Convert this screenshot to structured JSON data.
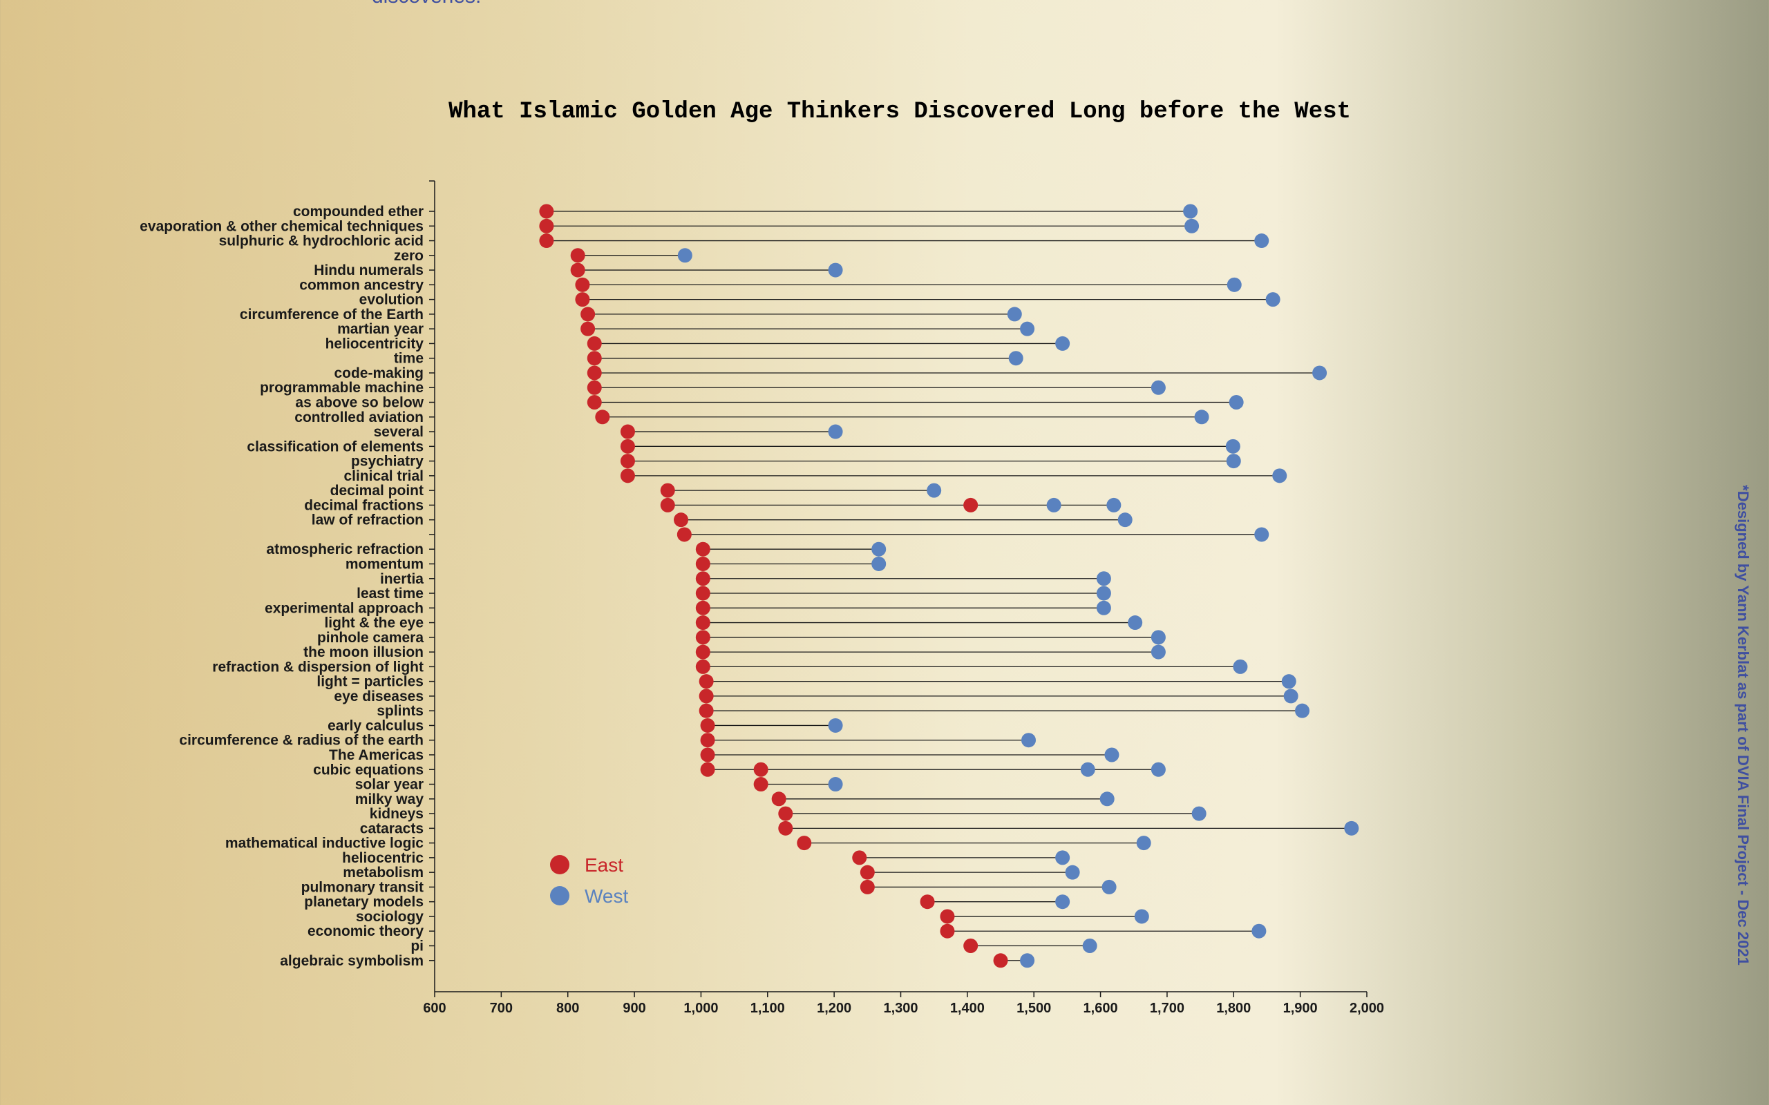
{
  "page": {
    "top_fragment": "discoveries.",
    "credit": "*Designed by Yann Kerblat as part of DVIA Final Project - Dec 2021"
  },
  "colors": {
    "east": "#c8262a",
    "west": "#5a82bf",
    "line": "#1a1a1a",
    "credit": "#3f4fa0"
  },
  "chart_data": {
    "type": "dumbbell",
    "title": "What Islamic Golden Age Thinkers Discovered Long before the West",
    "xlabel": "",
    "ylabel": "",
    "xlim": [
      600,
      2000
    ],
    "x_ticks": [
      "600",
      "700",
      "800",
      "900",
      "1,000",
      "1,100",
      "1,200",
      "1,300",
      "1,400",
      "1,500",
      "1,600",
      "1,700",
      "1,800",
      "1,900",
      "2,000"
    ],
    "grid": false,
    "legend": {
      "position": "bottom-left",
      "east_label": "East",
      "west_label": "West"
    },
    "rows": [
      {
        "label": "compounded ether",
        "east": [
          768
        ],
        "west": [
          1735
        ]
      },
      {
        "label": "evaporation & other chemical techniques",
        "east": [
          768
        ],
        "west": [
          1737
        ]
      },
      {
        "label": "sulphuric & hydrochloric acid",
        "east": [
          768
        ],
        "west": [
          1842
        ]
      },
      {
        "label": "zero",
        "east": [
          815
        ],
        "west": [
          976
        ]
      },
      {
        "label": "Hindu numerals",
        "east": [
          815
        ],
        "west": [
          1202
        ]
      },
      {
        "label": "common ancestry",
        "east": [
          822
        ],
        "west": [
          1801
        ]
      },
      {
        "label": "evolution",
        "east": [
          822
        ],
        "west": [
          1859
        ]
      },
      {
        "label": "circumference of the Earth",
        "east": [
          830
        ],
        "west": [
          1471
        ]
      },
      {
        "label": "martian year",
        "east": [
          830
        ],
        "west": [
          1490
        ]
      },
      {
        "label": "heliocentricity",
        "east": [
          840
        ],
        "west": [
          1543
        ]
      },
      {
        "label": "time",
        "east": [
          840
        ],
        "west": [
          1473
        ]
      },
      {
        "label": "code-making",
        "east": [
          840
        ],
        "west": [
          1929
        ]
      },
      {
        "label": "programmable machine",
        "east": [
          840
        ],
        "west": [
          1687
        ]
      },
      {
        "label": "as above so below",
        "east": [
          840
        ],
        "west": [
          1804
        ]
      },
      {
        "label": "controlled aviation",
        "east": [
          852
        ],
        "west": [
          1752
        ]
      },
      {
        "label": "several",
        "east": [
          890
        ],
        "west": [
          1202
        ]
      },
      {
        "label": "classification of elements",
        "east": [
          890
        ],
        "west": [
          1799
        ]
      },
      {
        "label": "psychiatry",
        "east": [
          890
        ],
        "west": [
          1800
        ]
      },
      {
        "label": "clinical trial",
        "east": [
          890
        ],
        "west": [
          1869
        ]
      },
      {
        "label": "decimal point",
        "east": [
          950
        ],
        "west": [
          1350
        ]
      },
      {
        "label": "decimal fractions",
        "east": [
          950,
          1405
        ],
        "west": [
          1530,
          1620
        ]
      },
      {
        "label": "law of refraction",
        "east": [
          970
        ],
        "west": [
          1637
        ]
      },
      {
        "label": "",
        "east": [
          975
        ],
        "west": [
          1842
        ]
      },
      {
        "label": "atmospheric refraction",
        "east": [
          1003
        ],
        "west": [
          1267
        ]
      },
      {
        "label": "momentum",
        "east": [
          1003
        ],
        "west": [
          1267
        ]
      },
      {
        "label": "inertia",
        "east": [
          1003
        ],
        "west": [
          1605
        ]
      },
      {
        "label": "least time",
        "east": [
          1003
        ],
        "west": [
          1605
        ]
      },
      {
        "label": "experimental approach",
        "east": [
          1003
        ],
        "west": [
          1605
        ]
      },
      {
        "label": "light & the eye",
        "east": [
          1003
        ],
        "west": [
          1652
        ]
      },
      {
        "label": "pinhole camera",
        "east": [
          1003
        ],
        "west": [
          1687
        ]
      },
      {
        "label": "the moon illusion",
        "east": [
          1003
        ],
        "west": [
          1687
        ]
      },
      {
        "label": "refraction & dispersion of light",
        "east": [
          1003
        ],
        "west": [
          1810
        ]
      },
      {
        "label": "light = particles",
        "east": [
          1008
        ],
        "west": [
          1883
        ]
      },
      {
        "label": "eye diseases",
        "east": [
          1008
        ],
        "west": [
          1886
        ]
      },
      {
        "label": "splints",
        "east": [
          1008
        ],
        "west": [
          1903
        ]
      },
      {
        "label": "early calculus",
        "east": [
          1010
        ],
        "west": [
          1202
        ]
      },
      {
        "label": "circumference & radius of the earth",
        "east": [
          1010
        ],
        "west": [
          1492
        ]
      },
      {
        "label": "The Americas",
        "east": [
          1010
        ],
        "west": [
          1617
        ]
      },
      {
        "label": "cubic equations",
        "east": [
          1010,
          1090
        ],
        "west": [
          1581,
          1687
        ]
      },
      {
        "label": "solar year",
        "east": [
          1090
        ],
        "west": [
          1202
        ]
      },
      {
        "label": "milky way",
        "east": [
          1117
        ],
        "west": [
          1610
        ]
      },
      {
        "label": "kidneys",
        "east": [
          1127
        ],
        "west": [
          1748
        ]
      },
      {
        "label": "cataracts",
        "east": [
          1127
        ],
        "west": [
          1977
        ]
      },
      {
        "label": "mathematical inductive logic",
        "east": [
          1155
        ],
        "west": [
          1665
        ]
      },
      {
        "label": "heliocentric",
        "east": [
          1238
        ],
        "west": [
          1543
        ]
      },
      {
        "label": "metabolism",
        "east": [
          1250
        ],
        "west": [
          1558
        ]
      },
      {
        "label": "pulmonary transit",
        "east": [
          1250
        ],
        "west": [
          1613
        ]
      },
      {
        "label": "planetary models",
        "east": [
          1340
        ],
        "west": [
          1543
        ]
      },
      {
        "label": "sociology",
        "east": [
          1370
        ],
        "west": [
          1662
        ]
      },
      {
        "label": "economic theory",
        "east": [
          1370
        ],
        "west": [
          1838
        ]
      },
      {
        "label": "pi",
        "east": [
          1405
        ],
        "west": [
          1584
        ]
      },
      {
        "label": "algebraic symbolism",
        "east": [
          1450
        ],
        "west": [
          1490
        ]
      }
    ]
  }
}
